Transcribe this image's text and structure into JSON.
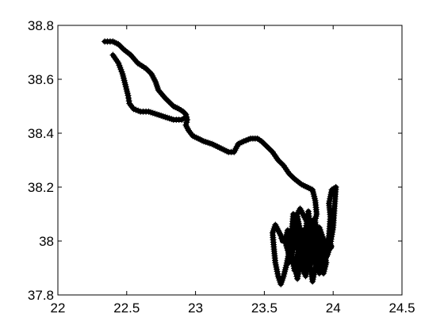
{
  "chart_data": {
    "type": "line",
    "title": "",
    "xlabel": "",
    "ylabel": "",
    "xlim": [
      22,
      24.5
    ],
    "ylim": [
      37.8,
      38.8
    ],
    "x_ticks": [
      22,
      22.5,
      23,
      23.5,
      24,
      24.5
    ],
    "y_ticks": [
      37.8,
      38,
      38.2,
      38.4,
      38.6,
      38.8
    ],
    "x_tick_labels": [
      "22",
      "22.5",
      "23",
      "23.5",
      "24",
      "24.5"
    ],
    "y_tick_labels": [
      "37.8",
      "38",
      "38.2",
      "38.4",
      "38.6",
      "38.8"
    ],
    "grid": false,
    "line_color": "#000000",
    "marker": "plus",
    "series": [
      {
        "x": [
          22.34,
          22.4,
          22.44,
          22.48,
          22.53,
          22.58,
          22.64,
          22.68,
          22.71,
          22.73,
          22.78,
          22.84,
          22.88,
          22.91,
          22.93,
          22.94,
          22.93,
          22.95,
          22.98,
          23.02,
          23.06,
          23.12,
          23.16,
          23.2,
          23.24,
          23.28,
          23.3,
          23.31,
          23.35,
          23.4,
          23.45,
          23.48,
          23.52,
          23.56,
          23.6,
          23.64,
          23.68,
          23.72,
          23.77,
          23.81,
          23.85,
          23.87,
          23.88,
          23.86,
          23.85,
          23.87,
          23.9,
          23.93,
          23.95,
          23.97,
          23.98,
          23.97,
          23.99,
          24.02,
          24.0,
          23.98,
          23.96,
          23.94,
          23.92,
          23.9,
          23.88,
          23.86,
          23.84,
          23.82,
          23.8,
          23.78,
          23.76,
          23.74,
          23.72,
          23.7,
          23.68,
          23.66,
          23.64,
          23.62,
          23.6,
          23.58,
          23.57,
          23.56,
          23.58,
          23.6,
          23.62,
          23.63
        ],
        "y": [
          38.74,
          38.74,
          38.73,
          38.71,
          38.69,
          38.66,
          38.64,
          38.62,
          38.59,
          38.56,
          38.53,
          38.5,
          38.49,
          38.48,
          38.47,
          38.45,
          38.43,
          38.41,
          38.39,
          38.38,
          38.37,
          38.36,
          38.35,
          38.34,
          38.33,
          38.33,
          38.35,
          38.36,
          38.37,
          38.38,
          38.38,
          38.37,
          38.35,
          38.33,
          38.3,
          38.28,
          38.25,
          38.23,
          38.21,
          38.2,
          38.19,
          38.15,
          38.1,
          38.06,
          38.02,
          37.98,
          37.96,
          37.94,
          37.97,
          38.02,
          38.09,
          38.14,
          38.19,
          38.2,
          38.05,
          37.99,
          37.95,
          37.93,
          37.9,
          37.88,
          37.92,
          37.97,
          38.02,
          38.06,
          38.08,
          38.1,
          38.12,
          38.1,
          38.06,
          38.01,
          37.96,
          37.91,
          37.87,
          37.84,
          37.87,
          37.92,
          37.97,
          38.03,
          38.06,
          38.04,
          38.02,
          38.0
        ]
      },
      {
        "x": [
          22.4,
          22.44,
          22.47,
          22.49,
          22.51,
          22.52,
          22.55,
          22.6,
          22.66,
          22.72,
          22.78,
          22.84,
          22.9,
          22.93
        ],
        "y": [
          38.69,
          38.66,
          38.62,
          38.58,
          38.54,
          38.51,
          38.49,
          38.48,
          38.48,
          38.47,
          38.46,
          38.45,
          38.45,
          38.46
        ]
      },
      {
        "x": [
          23.7,
          23.74,
          23.78,
          23.82,
          23.86,
          23.9,
          23.92,
          23.95,
          23.93,
          23.89,
          23.85,
          23.81,
          23.77,
          23.73,
          23.7,
          23.68,
          23.71,
          23.75,
          23.79,
          23.83,
          23.87,
          23.91,
          23.94,
          23.9,
          23.86,
          23.82,
          23.78,
          23.74,
          23.7,
          23.67,
          23.65,
          23.69,
          23.74,
          23.79,
          23.84,
          23.88,
          23.91,
          23.87,
          23.83,
          23.78,
          23.74,
          23.7,
          23.72,
          23.76,
          23.8,
          23.84,
          23.88,
          23.92,
          23.96,
          23.99
        ],
        "y": [
          38.02,
          37.97,
          38.04,
          37.93,
          38.08,
          37.96,
          38.01,
          37.92,
          37.88,
          37.95,
          37.85,
          37.99,
          37.9,
          38.06,
          37.96,
          37.92,
          38.1,
          37.98,
          37.88,
          38.03,
          37.94,
          37.91,
          37.99,
          38.05,
          37.92,
          38.11,
          37.97,
          37.86,
          37.95,
          38.04,
          38.0,
          37.93,
          38.08,
          37.95,
          38.02,
          37.9,
          37.96,
          38.07,
          37.92,
          37.99,
          38.09,
          37.94,
          37.89,
          38.01,
          37.87,
          37.97,
          37.93,
          37.98,
          37.96,
          37.98
        ]
      }
    ]
  }
}
